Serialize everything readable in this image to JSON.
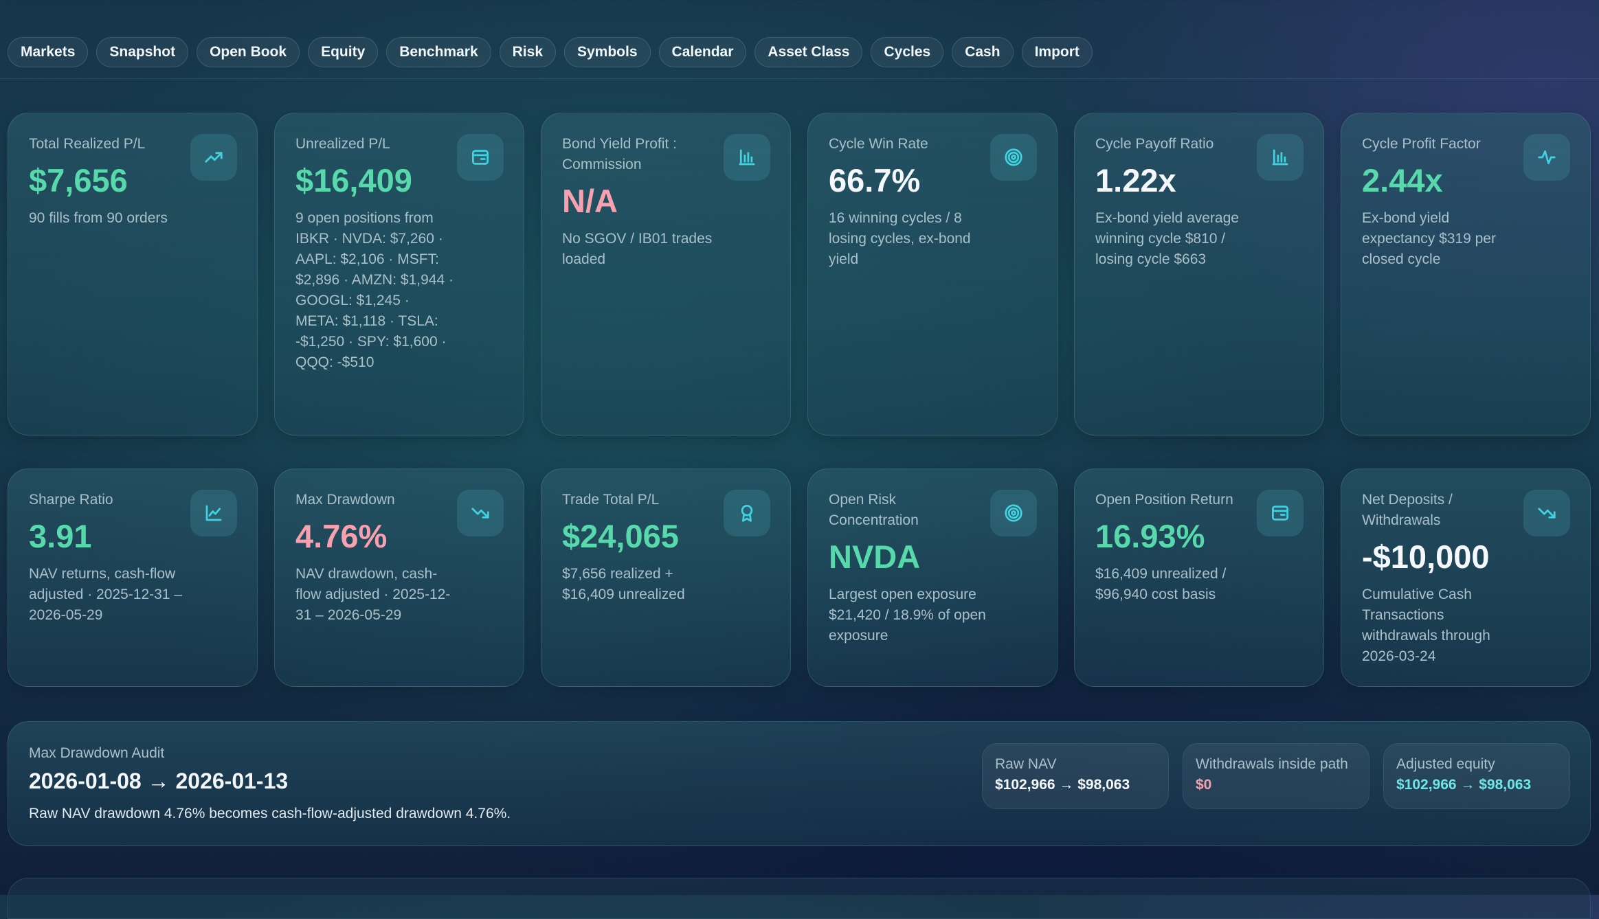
{
  "nav": {
    "items": [
      "Markets",
      "Snapshot",
      "Open Book",
      "Equity",
      "Benchmark",
      "Risk",
      "Symbols",
      "Calendar",
      "Asset Class",
      "Cycles",
      "Cash",
      "Import"
    ]
  },
  "cards_row1": [
    {
      "label": "Total Realized P/L",
      "value": "$7,656",
      "value_tone": "green",
      "description": "90 fills from 90 orders",
      "icon": "trending-up-icon"
    },
    {
      "label": "Unrealized P/L",
      "value": "$16,409",
      "value_tone": "green",
      "description": "9 open positions from IBKR · NVDA: $7,260 · AAPL: $2,106 · MSFT: $2,896 · AMZN: $1,944 · GOOGL: $1,245 · META: $1,118 · TSLA: -$1,250 · SPY: $1,600 · QQQ: -$510",
      "icon": "wallet-icon"
    },
    {
      "label": "Bond Yield Profit : Commission",
      "value": "N/A",
      "value_tone": "pink",
      "description": "No SGOV / IB01 trades loaded",
      "icon": "bar-chart-icon"
    },
    {
      "label": "Cycle Win Rate",
      "value": "66.7%",
      "value_tone": "white",
      "description": "16 winning cycles / 8 losing cycles, ex-bond yield",
      "icon": "target-icon"
    },
    {
      "label": "Cycle Payoff Ratio",
      "value": "1.22x",
      "value_tone": "white",
      "description": "Ex-bond yield average winning cycle $810 / losing cycle $663",
      "icon": "bar-chart-icon"
    },
    {
      "label": "Cycle Profit Factor",
      "value": "2.44x",
      "value_tone": "green",
      "description": "Ex-bond yield expectancy $319 per closed cycle",
      "icon": "activity-icon"
    }
  ],
  "cards_row2": [
    {
      "label": "Sharpe Ratio",
      "value": "3.91",
      "value_tone": "green",
      "description": "NAV returns, cash-flow adjusted · 2025-12-31 – 2026-05-29",
      "icon": "line-chart-icon"
    },
    {
      "label": "Max Drawdown",
      "value": "4.76%",
      "value_tone": "pink",
      "description": "NAV drawdown, cash-flow adjusted · 2025-12-31 – 2026-05-29",
      "icon": "trending-down-icon"
    },
    {
      "label": "Trade Total P/L",
      "value": "$24,065",
      "value_tone": "green",
      "description": "$7,656 realized + $16,409 unrealized",
      "icon": "award-icon"
    },
    {
      "label": "Open Risk Concentration",
      "value": "NVDA",
      "value_tone": "green",
      "description": "Largest open exposure $21,420 / 18.9% of open exposure",
      "icon": "target-icon"
    },
    {
      "label": "Open Position Return",
      "value": "16.93%",
      "value_tone": "green",
      "description": "$16,409 unrealized / $96,940 cost basis",
      "icon": "wallet-icon"
    },
    {
      "label": "Net Deposits / Withdrawals",
      "value": "-$10,000",
      "value_tone": "white",
      "description": "Cumulative Cash Transactions withdrawals through 2026-03-24",
      "icon": "trending-down-icon"
    }
  ],
  "audit": {
    "label": "Max Drawdown Audit",
    "range": "2026-01-08 → 2026-01-13",
    "note": "Raw NAV drawdown 4.76% becomes cash-flow-adjusted drawdown 4.76%.",
    "raw_nav": {
      "label": "Raw NAV",
      "value": "$102,966 → $98,063"
    },
    "withdrawals": {
      "label": "Withdrawals inside path",
      "value": "$0"
    },
    "adjusted": {
      "label": "Adjusted equity",
      "value": "$102,966 → $98,063"
    }
  },
  "colors": {
    "positive": "#58d9ac",
    "negative": "#f7a0b0",
    "icon_accent": "#40d2e0",
    "adjusted_value": "#6ee6e3"
  }
}
